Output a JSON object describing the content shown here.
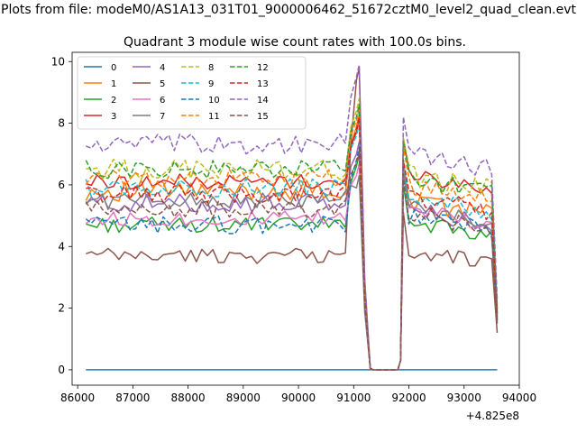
{
  "chart_data": {
    "type": "line",
    "suptitle": "Plots from file: modeM0/AS1A13_031T01_9000006462_51672cztM0_level2_quad_clean.evt",
    "title": "Quadrant 3 module wise count rates with 100.0s bins.",
    "xlabel": "",
    "ylabel": "",
    "x_offset_label": "+4.825e8",
    "xlim": [
      86150,
      93600
    ],
    "ylim": [
      -0.5,
      10.3
    ],
    "x_ticks": [
      86000,
      87000,
      88000,
      89000,
      90000,
      91000,
      92000,
      93000,
      94000
    ],
    "x_tick_labels": [
      "86000",
      "87000",
      "88000",
      "89000",
      "90000",
      "91000",
      "92000",
      "93000",
      "94000"
    ],
    "y_ticks": [
      0,
      2,
      4,
      6,
      8,
      10
    ],
    "y_tick_labels": [
      "0",
      "2",
      "4",
      "6",
      "8",
      "10"
    ],
    "grid": false,
    "legend_position": "top-left",
    "legend_columns": 4,
    "segment_a_x": [
      86150,
      86250,
      86350,
      86450,
      86550,
      86650,
      86750,
      86850,
      86950,
      87050,
      87150,
      87250,
      87350,
      87450,
      87550,
      87650,
      87750,
      87850,
      87950,
      88050,
      88150,
      88250,
      88350,
      88450,
      88550,
      88650,
      88750,
      88850,
      88950,
      89050,
      89150,
      89250,
      89350,
      89450,
      89550,
      89650,
      89750,
      89850,
      89950,
      90050,
      90150,
      90250,
      90350,
      90450,
      90550,
      90650,
      90750,
      90850,
      90950,
      91050,
      91100,
      91200,
      91300,
      91350,
      91400,
      91500,
      91600,
      91700,
      91800
    ],
    "segment_b_x": [
      91800,
      91850,
      91900,
      92000,
      92100,
      92200,
      92300,
      92400,
      92500,
      92600,
      92700,
      92800,
      92900,
      93000,
      93100,
      93200,
      93300,
      93400,
      93500,
      93600
    ],
    "series": [
      {
        "name": "0",
        "color": "#1f77b4",
        "dash": "solid",
        "base_a": 0.0,
        "base_b": 0.0,
        "amp": 0.0,
        "seed": 1,
        "peak": 0.0,
        "tail": 0.0
      },
      {
        "name": "1",
        "color": "#ff7f0e",
        "dash": "solid",
        "base_a": 5.8,
        "base_b": 5.5,
        "amp": 0.35,
        "seed": 2,
        "peak": 8.3,
        "tail": 2.0
      },
      {
        "name": "2",
        "color": "#2ca02c",
        "dash": "solid",
        "base_a": 4.7,
        "base_b": 4.8,
        "amp": 0.25,
        "seed": 3,
        "peak": 7.0,
        "tail": 1.5
      },
      {
        "name": "3",
        "color": "#d62728",
        "dash": "solid",
        "base_a": 6.1,
        "base_b": 6.3,
        "amp": 0.25,
        "seed": 4,
        "peak": 8.1,
        "tail": 1.8
      },
      {
        "name": "4",
        "color": "#9467bd",
        "dash": "solid",
        "base_a": 5.4,
        "base_b": 5.2,
        "amp": 0.3,
        "seed": 5,
        "peak": 7.4,
        "tail": 1.7
      },
      {
        "name": "5",
        "color": "#8c564b",
        "dash": "solid",
        "base_a": 3.7,
        "base_b": 3.9,
        "amp": 0.25,
        "seed": 6,
        "peak": 9.8,
        "tail": 1.2
      },
      {
        "name": "6",
        "color": "#e377c2",
        "dash": "solid",
        "base_a": 4.9,
        "base_b": 5.2,
        "amp": 0.25,
        "seed": 7,
        "peak": 6.7,
        "tail": 1.6
      },
      {
        "name": "7",
        "color": "#7f7f7f",
        "dash": "solid",
        "base_a": 5.5,
        "base_b": 5.3,
        "amp": 0.3,
        "seed": 8,
        "peak": 6.3,
        "tail": 1.7
      },
      {
        "name": "8",
        "color": "#bcbd22",
        "dash": "dashed",
        "base_a": 6.5,
        "base_b": 6.3,
        "amp": 0.35,
        "seed": 9,
        "peak": 8.8,
        "tail": 2.1
      },
      {
        "name": "9",
        "color": "#17becf",
        "dash": "dashed",
        "base_a": 5.9,
        "base_b": 5.6,
        "amp": 0.3,
        "seed": 10,
        "peak": 8.0,
        "tail": 1.9
      },
      {
        "name": "10",
        "color": "#1f77b4",
        "dash": "dashed",
        "base_a": 4.7,
        "base_b": 5.0,
        "amp": 0.3,
        "seed": 11,
        "peak": 7.2,
        "tail": 1.6
      },
      {
        "name": "11",
        "color": "#ff7f0e",
        "dash": "dashed",
        "base_a": 6.2,
        "base_b": 6.0,
        "amp": 0.3,
        "seed": 12,
        "peak": 8.5,
        "tail": 2.0
      },
      {
        "name": "12",
        "color": "#2ca02c",
        "dash": "dashed",
        "base_a": 6.5,
        "base_b": 6.2,
        "amp": 0.3,
        "seed": 13,
        "peak": 8.6,
        "tail": 1.9
      },
      {
        "name": "13",
        "color": "#d62728",
        "dash": "dashed",
        "base_a": 5.7,
        "base_b": 5.6,
        "amp": 0.3,
        "seed": 14,
        "peak": 8.2,
        "tail": 1.8
      },
      {
        "name": "14",
        "color": "#9467bd",
        "dash": "dashed",
        "base_a": 7.3,
        "base_b": 7.0,
        "amp": 0.35,
        "seed": 15,
        "peak": 9.9,
        "tail": 2.3
      },
      {
        "name": "15",
        "color": "#8c564b",
        "dash": "dashed",
        "base_a": 5.2,
        "base_b": 5.0,
        "amp": 0.3,
        "seed": 16,
        "peak": 7.1,
        "tail": 1.6
      }
    ]
  }
}
